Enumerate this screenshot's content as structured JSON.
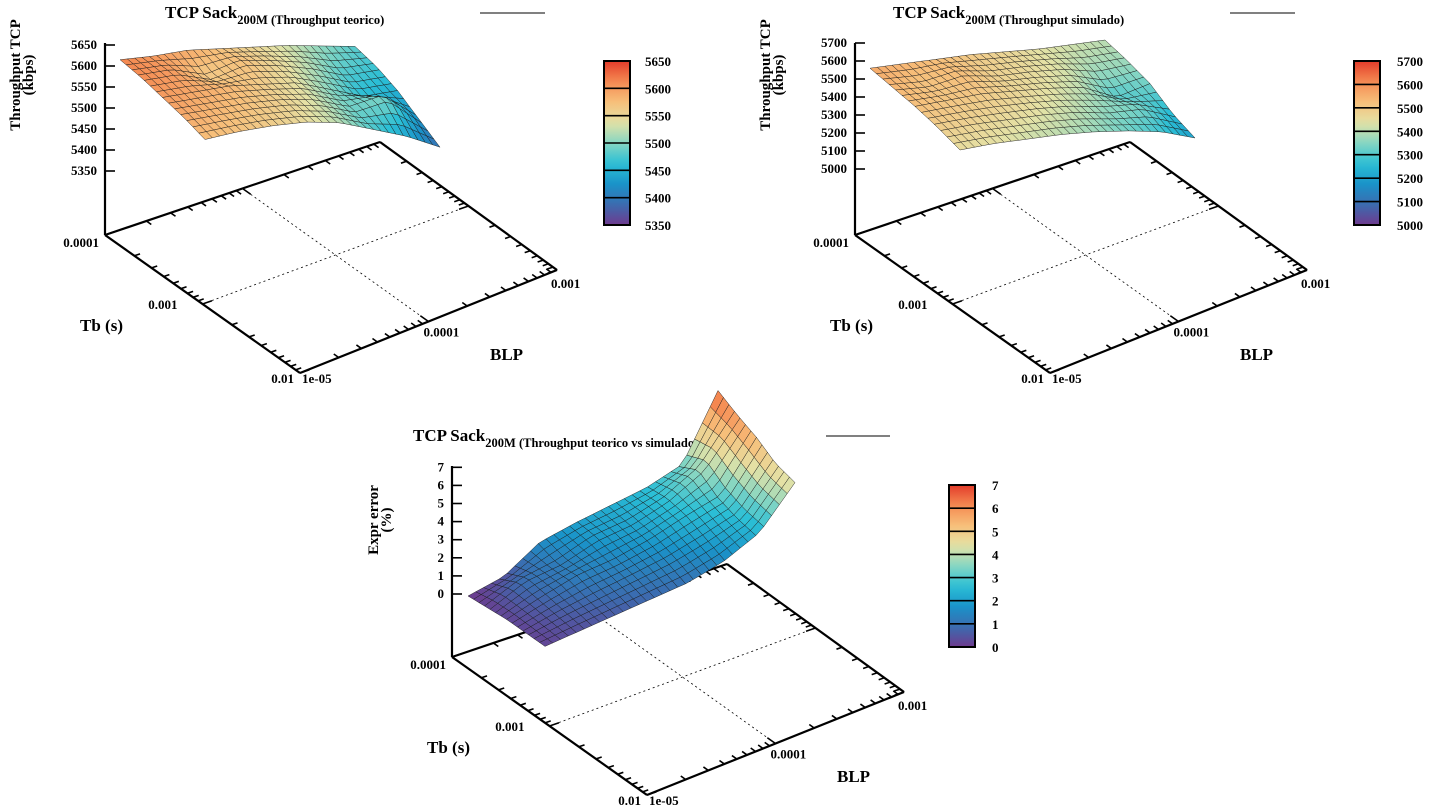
{
  "chart_data": [
    {
      "type": "surface3d",
      "title": "TCP Sack",
      "title_subscript": "200M (Throughput teorico)",
      "xlabel": "BLP",
      "ylabel": "Tb (s)",
      "zlabel": [
        "Throughput TCP",
        "(kbps)"
      ],
      "x_scale": "log",
      "xlim": [
        1e-05,
        0.001
      ],
      "y_scale": "log",
      "ylim": [
        0.0001,
        0.01
      ],
      "zlim": [
        5350,
        5650
      ],
      "x_ticks": [
        "1e-05",
        "0.0001",
        "0.001"
      ],
      "y_ticks": [
        "0.0001",
        "0.001",
        "0.01"
      ],
      "z_ticks": [
        "5650",
        "5600",
        "5550",
        "5500",
        "5450",
        "5400",
        "5350"
      ],
      "colorbar_ticks": [
        "5650",
        "5600",
        "5550",
        "5500",
        "5450",
        "5400",
        "5350"
      ],
      "z_grid_rows_by_Tb_cols_by_BLP": [
        [
          5615,
          5600,
          5590,
          5570,
          5550,
          5530,
          5505,
          5480
        ],
        [
          5610,
          5600,
          5560,
          5575,
          5550,
          5520,
          5480,
          5470
        ],
        [
          5600,
          5590,
          5580,
          5560,
          5540,
          5500,
          5460,
          5450
        ],
        [
          5590,
          5580,
          5570,
          5555,
          5530,
          5490,
          5500,
          5420
        ],
        [
          5575,
          5570,
          5560,
          5545,
          5520,
          5480,
          5440,
          5390
        ]
      ]
    },
    {
      "type": "surface3d",
      "title": "TCP Sack",
      "title_subscript": "200M (Throughput simulado)",
      "xlabel": "BLP",
      "ylabel": "Tb (s)",
      "zlabel": [
        "Throughput TCP",
        "(kbps)"
      ],
      "x_scale": "log",
      "xlim": [
        1e-05,
        0.001
      ],
      "y_scale": "log",
      "ylim": [
        0.0001,
        0.01
      ],
      "zlim": [
        5000,
        5700
      ],
      "x_ticks": [
        "1e-05",
        "0.0001",
        "0.001"
      ],
      "y_ticks": [
        "0.0001",
        "0.001",
        "0.01"
      ],
      "z_ticks": [
        "5700",
        "5600",
        "5500",
        "5400",
        "5300",
        "5200",
        "5100",
        "5000"
      ],
      "colorbar_ticks": [
        "5700",
        "5600",
        "5500",
        "5400",
        "5300",
        "5200",
        "5100",
        "5000"
      ],
      "z_grid_rows_by_Tb_cols_by_BLP": [
        [
          5560,
          5540,
          5520,
          5500,
          5470,
          5440,
          5420,
          5400
        ],
        [
          5540,
          5510,
          5530,
          5480,
          5460,
          5430,
          5380,
          5370
        ],
        [
          5520,
          5510,
          5500,
          5470,
          5440,
          5400,
          5300,
          5330
        ],
        [
          5490,
          5480,
          5460,
          5440,
          5410,
          5360,
          5340,
          5250
        ],
        [
          5450,
          5440,
          5420,
          5400,
          5370,
          5330,
          5280,
          5200
        ]
      ]
    },
    {
      "type": "surface3d",
      "title": "TCP Sack",
      "title_subscript": "200M (Throughput teorico vs simulado)",
      "xlabel": "BLP",
      "ylabel": "Tb (s)",
      "zlabel": [
        "Expr error",
        "(%)"
      ],
      "x_scale": "log",
      "xlim": [
        1e-05,
        0.001
      ],
      "y_scale": "log",
      "ylim": [
        0.0001,
        0.01
      ],
      "zlim": [
        0,
        7
      ],
      "x_ticks": [
        "1e-05",
        "0.0001",
        "0.001"
      ],
      "y_ticks": [
        "0.0001",
        "0.001",
        "0.01"
      ],
      "z_ticks": [
        "7",
        "6",
        "5",
        "4",
        "3",
        "2",
        "1",
        "0"
      ],
      "colorbar_ticks": [
        "7",
        "6",
        "5",
        "4",
        "3",
        "2",
        "1",
        "0"
      ],
      "z_grid_rows_by_Tb_cols_by_BLP": [
        [
          0.0,
          0.4,
          1.6,
          2.0,
          2.3,
          2.6,
          3.2,
          6.6
        ],
        [
          0.1,
          1.0,
          1.2,
          1.9,
          2.1,
          2.7,
          3.8,
          6.0
        ],
        [
          0.2,
          0.8,
          1.3,
          1.5,
          1.9,
          2.5,
          3.0,
          5.5
        ],
        [
          0.2,
          0.6,
          0.9,
          1.2,
          1.5,
          2.0,
          2.6,
          4.8
        ],
        [
          0.2,
          0.4,
          0.6,
          0.8,
          1.0,
          1.5,
          2.4,
          4.5
        ]
      ]
    }
  ],
  "palette": [
    "#6e3a8e",
    "#3b6cb0",
    "#1a93c9",
    "#2bbfd6",
    "#86d6c2",
    "#e4e2a6",
    "#f7bf7a",
    "#f58a52",
    "#e23b2a"
  ]
}
